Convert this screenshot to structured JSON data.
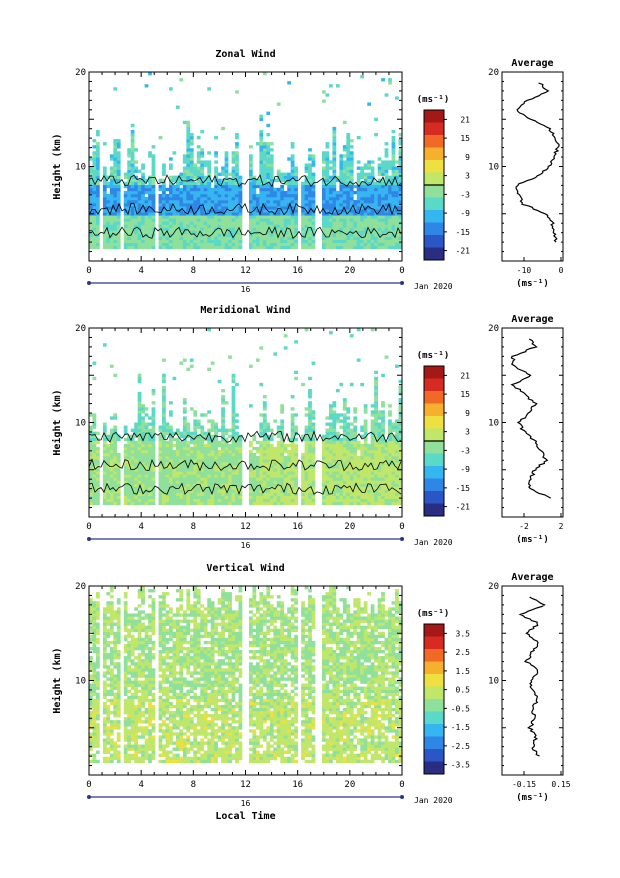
{
  "panels": [
    {
      "title": "Zonal Wind",
      "ylabel": "Height (km)",
      "x_ticks": [
        "0",
        "4",
        "8",
        "12",
        "16",
        "20",
        "0"
      ],
      "date_mark": "16",
      "date_label": "Jan 2020",
      "y_ticks": [
        "20",
        "10"
      ],
      "colorbar": {
        "unit": "(ms⁻¹)",
        "ticks": [
          "21",
          "15",
          "9",
          "3",
          "-3",
          "-9",
          "-15",
          "-21"
        ]
      },
      "average": {
        "title": "Average",
        "x_ticks": [
          "-10",
          "0"
        ],
        "unit": "(ms⁻¹)"
      }
    },
    {
      "title": "Meridional Wind",
      "ylabel": "Height (km)",
      "x_ticks": [
        "0",
        "4",
        "8",
        "12",
        "16",
        "20",
        "0"
      ],
      "date_mark": "16",
      "date_label": "Jan 2020",
      "y_ticks": [
        "20",
        "10"
      ],
      "colorbar": {
        "unit": "(ms⁻¹)",
        "ticks": [
          "21",
          "15",
          "9",
          "3",
          "-3",
          "-9",
          "-15",
          "-21"
        ]
      },
      "average": {
        "title": "Average",
        "x_ticks": [
          "-2",
          "2"
        ],
        "unit": "(ms⁻¹)"
      }
    },
    {
      "title": "Vertical Wind",
      "ylabel": "Height (km)",
      "x_ticks": [
        "0",
        "4",
        "8",
        "12",
        "16",
        "20",
        "0"
      ],
      "date_mark": "16",
      "date_label": "Jan 2020",
      "xlabel": "Local Time",
      "y_ticks": [
        "20",
        "10"
      ],
      "colorbar": {
        "unit": "(ms⁻¹)",
        "ticks": [
          "3.5",
          "2.5",
          "1.5",
          "0.5",
          "-0.5",
          "-1.5",
          "-2.5",
          "-3.5"
        ]
      },
      "average": {
        "title": "Average",
        "x_ticks": [
          "-0.15",
          "0.15"
        ],
        "unit": "(ms⁻¹)"
      }
    }
  ],
  "chart_data": [
    {
      "type": "heatmap",
      "title": "Zonal Wind",
      "ylabel": "Height (km)",
      "xlim": [
        0,
        24
      ],
      "ylim": [
        0,
        20
      ],
      "zlim": [
        -24,
        24
      ],
      "profile": {
        "x_range": [
          -16,
          1
        ],
        "heights": [
          2,
          3,
          4,
          5,
          6,
          7,
          8,
          9,
          10,
          11,
          12,
          13,
          14,
          15,
          16,
          17,
          18,
          19
        ],
        "values": [
          -1,
          -1.5,
          -2,
          -4,
          -10,
          -11.5,
          -12,
          -6,
          -3,
          -1.5,
          -0.5,
          -0.8,
          -3,
          -8,
          -12,
          -9,
          -3,
          -6
        ]
      }
    },
    {
      "type": "heatmap",
      "title": "Meridional Wind",
      "ylabel": "Height (km)",
      "xlim": [
        0,
        24
      ],
      "ylim": [
        0,
        20
      ],
      "zlim": [
        -24,
        24
      ],
      "profile": {
        "x_range": [
          -3,
          2.5
        ],
        "heights": [
          2,
          3,
          4,
          5,
          6,
          7,
          8,
          9,
          10,
          11,
          12,
          13,
          14,
          15,
          16,
          17,
          18,
          19
        ],
        "values": [
          1.5,
          -0.5,
          -0.5,
          0,
          1,
          0.5,
          0,
          -1,
          -1.5,
          -0.5,
          0,
          -1,
          -2,
          -0.5,
          -2,
          -2,
          0,
          -0.5
        ]
      }
    },
    {
      "type": "heatmap",
      "title": "Vertical Wind",
      "ylabel": "Height (km)",
      "xlabel": "Local Time",
      "xlim": [
        0,
        24
      ],
      "ylim": [
        0,
        20
      ],
      "zlim": [
        -4,
        4
      ],
      "profile": {
        "x_range": [
          -0.25,
          0.25
        ],
        "heights": [
          2,
          3,
          4,
          5,
          6,
          7,
          8,
          9,
          10,
          11,
          12,
          13,
          14,
          15,
          16,
          17,
          18,
          19
        ],
        "values": [
          0.05,
          0,
          0.03,
          -0.02,
          0.02,
          0,
          0.04,
          0,
          -0.02,
          0.05,
          -0.05,
          0,
          0.05,
          -0.05,
          0.05,
          -0.1,
          0.1,
          -0.05
        ]
      }
    }
  ],
  "colors": {
    "scale": [
      "#2a2e82",
      "#2a56c6",
      "#2f86e6",
      "#35b6f0",
      "#5ad8c8",
      "#8ee09a",
      "#c0e66a",
      "#eee040",
      "#f6b02e",
      "#f06a26",
      "#d62a22",
      "#a41818"
    ]
  }
}
